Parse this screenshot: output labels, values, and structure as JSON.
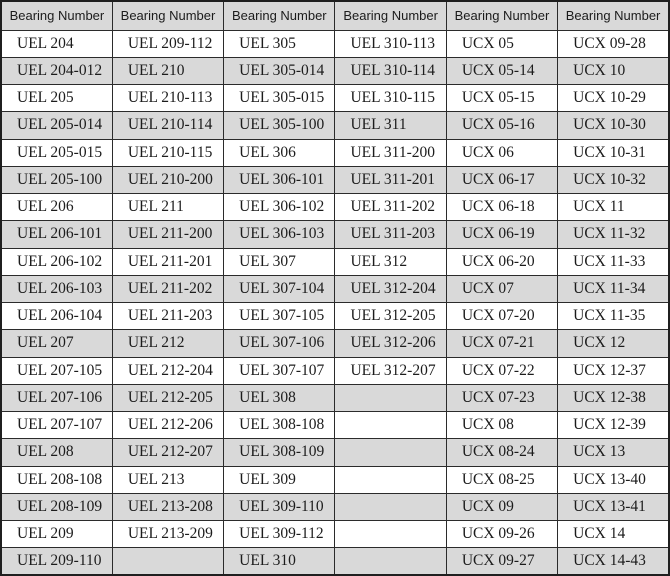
{
  "table": {
    "headers": [
      "Bearing Number",
      "Bearing Number",
      "Bearing Number",
      "Bearing Number",
      "Bearing Number",
      "Bearing Number"
    ],
    "rows": [
      [
        "UEL 204",
        "UEL 209-112",
        "UEL 305",
        "UEL 310-113",
        "UCX 05",
        "UCX 09-28"
      ],
      [
        "UEL 204-012",
        "UEL 210",
        "UEL 305-014",
        "UEL 310-114",
        "UCX 05-14",
        "UCX 10"
      ],
      [
        "UEL 205",
        "UEL 210-113",
        "UEL 305-015",
        "UEL 310-115",
        "UCX 05-15",
        "UCX 10-29"
      ],
      [
        "UEL 205-014",
        "UEL 210-114",
        "UEL 305-100",
        "UEL 311",
        "UCX 05-16",
        "UCX 10-30"
      ],
      [
        "UEL 205-015",
        "UEL 210-115",
        "UEL 306",
        "UEL 311-200",
        "UCX 06",
        "UCX 10-31"
      ],
      [
        "UEL 205-100",
        "UEL 210-200",
        "UEL 306-101",
        "UEL 311-201",
        "UCX 06-17",
        "UCX 10-32"
      ],
      [
        "UEL 206",
        "UEL 211",
        "UEL 306-102",
        "UEL 311-202",
        "UCX 06-18",
        "UCX 11"
      ],
      [
        "UEL 206-101",
        "UEL 211-200",
        "UEL 306-103",
        "UEL 311-203",
        "UCX 06-19",
        "UCX 11-32"
      ],
      [
        "UEL 206-102",
        "UEL 211-201",
        "UEL 307",
        "UEL 312",
        "UCX 06-20",
        "UCX 11-33"
      ],
      [
        "UEL 206-103",
        "UEL 211-202",
        "UEL 307-104",
        "UEL 312-204",
        "UCX 07",
        "UCX 11-34"
      ],
      [
        "UEL 206-104",
        "UEL 211-203",
        "UEL 307-105",
        "UEL 312-205",
        "UCX 07-20",
        "UCX 11-35"
      ],
      [
        "UEL 207",
        "UEL 212",
        "UEL 307-106",
        "UEL 312-206",
        "UCX 07-21",
        "UCX 12"
      ],
      [
        "UEL 207-105",
        "UEL 212-204",
        "UEL 307-107",
        "UEL 312-207",
        "UCX 07-22",
        "UCX 12-37"
      ],
      [
        "UEL 207-106",
        "UEL 212-205",
        "UEL 308",
        "",
        "UCX 07-23",
        "UCX 12-38"
      ],
      [
        "UEL 207-107",
        "UEL 212-206",
        "UEL 308-108",
        "",
        "UCX 08",
        "UCX 12-39"
      ],
      [
        "UEL 208",
        "UEL 212-207",
        "UEL 308-109",
        "",
        "UCX 08-24",
        "UCX 13"
      ],
      [
        "UEL 208-108",
        "UEL 213",
        "UEL 309",
        "",
        "UCX 08-25",
        "UCX 13-40"
      ],
      [
        "UEL 208-109",
        "UEL 213-208",
        "UEL 309-110",
        "",
        "UCX 09",
        "UCX 13-41"
      ],
      [
        "UEL 209",
        "UEL 213-209",
        "UEL 309-112",
        "",
        "UCX 09-26",
        "UCX 14"
      ],
      [
        "UEL 209-110",
        "",
        "UEL 310",
        "",
        "UCX 09-27",
        "UCX 14-43"
      ]
    ]
  },
  "colors": {
    "header_bg": "#d9d9d9",
    "row_alt_bg": "#d9d9d9",
    "row_bg": "#ffffff",
    "border": "#2b2b2b",
    "text": "#1c1c1c"
  }
}
